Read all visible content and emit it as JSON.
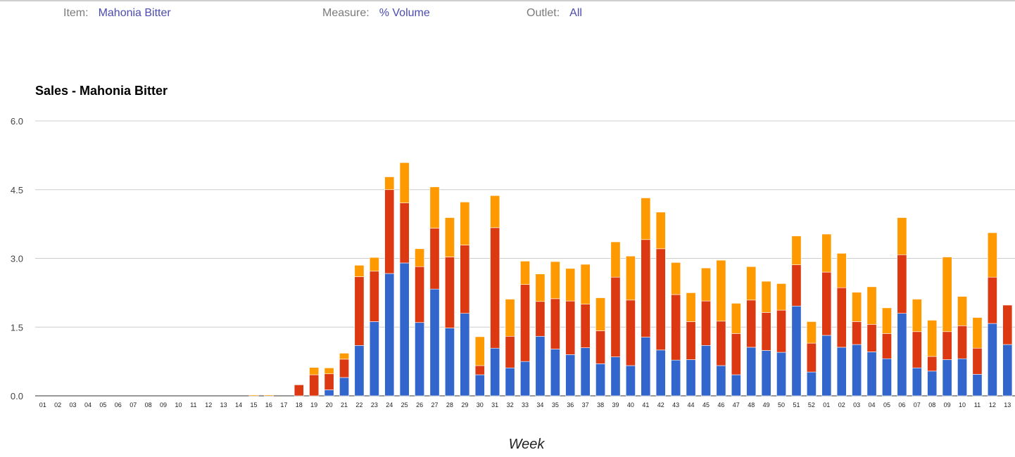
{
  "filters": {
    "item_label": "Item:",
    "item_value": "Mahonia Bitter",
    "measure_label": "Measure:",
    "measure_value": "% Volume",
    "outlet_label": "Outlet:",
    "outlet_value": "All"
  },
  "chart_data": {
    "type": "bar",
    "stacked": true,
    "title": "Sales - Mahonia Bitter",
    "xlabel": "Week",
    "ylabel": "",
    "ylim": [
      0,
      6
    ],
    "yticks": [
      "0.0",
      "1.5",
      "3.0",
      "4.5",
      "6.0"
    ],
    "grid": true,
    "legend": "none",
    "colors": [
      "#3366cc",
      "#dc3912",
      "#ff9900"
    ],
    "categories": [
      "01",
      "02",
      "03",
      "04",
      "05",
      "06",
      "07",
      "08",
      "09",
      "10",
      "11",
      "12",
      "13",
      "14",
      "15",
      "16",
      "17",
      "18",
      "19",
      "20",
      "21",
      "22",
      "23",
      "24",
      "25",
      "26",
      "27",
      "28",
      "29",
      "30",
      "31",
      "32",
      "33",
      "34",
      "35",
      "36",
      "37",
      "38",
      "39",
      "40",
      "41",
      "42",
      "43",
      "44",
      "45",
      "46",
      "47",
      "48",
      "49",
      "50",
      "51",
      "52",
      "01",
      "02",
      "03",
      "04",
      "05",
      "06",
      "07",
      "08",
      "09",
      "10",
      "11",
      "12",
      "13"
    ],
    "series": [
      {
        "values": [
          0,
          0,
          0,
          0,
          0,
          0,
          0,
          0,
          0,
          0,
          0,
          0,
          0,
          0,
          0,
          0,
          0,
          0,
          0,
          0.13,
          0.4,
          1.1,
          1.62,
          2.67,
          2.9,
          1.6,
          2.33,
          1.48,
          1.8,
          0.46,
          1.04,
          0.61,
          0.75,
          1.3,
          1.02,
          0.9,
          1.05,
          0.7,
          0.85,
          0.66,
          1.28,
          1.0,
          0.78,
          0.79,
          1.1,
          0.66,
          0.46,
          1.06,
          0.99,
          0.95,
          1.96,
          0.52,
          1.32,
          1.06,
          1.12,
          0.96,
          0.81,
          1.8,
          0.61,
          0.54,
          0.79,
          0.81,
          0.47,
          1.58,
          1.12
        ]
      },
      {
        "values": [
          0,
          0,
          0,
          0,
          0,
          0,
          0,
          0,
          0,
          0,
          0,
          0,
          0,
          0,
          0,
          0,
          0,
          0.24,
          0.46,
          0.35,
          0.4,
          1.5,
          1.1,
          1.83,
          1.31,
          1.22,
          1.33,
          1.55,
          1.49,
          0.2,
          2.63,
          0.69,
          1.68,
          0.76,
          1.1,
          1.17,
          0.95,
          0.72,
          1.74,
          1.43,
          2.13,
          2.21,
          1.43,
          0.83,
          0.97,
          0.97,
          0.9,
          1.03,
          0.83,
          0.92,
          0.9,
          0.63,
          1.38,
          1.3,
          0.5,
          0.6,
          0.55,
          1.28,
          0.79,
          0.32,
          0.61,
          0.72,
          0.57,
          1.01,
          0.86
        ]
      },
      {
        "values": [
          0,
          0,
          0,
          0,
          0,
          0,
          0,
          0,
          0,
          0,
          0,
          0,
          0,
          0,
          0.02,
          0.02,
          0,
          0,
          0.16,
          0.13,
          0.13,
          0.25,
          0.3,
          0.28,
          0.88,
          0.39,
          0.9,
          0.86,
          0.94,
          0.63,
          0.7,
          0.81,
          0.51,
          0.6,
          0.81,
          0.71,
          0.87,
          0.72,
          0.77,
          0.96,
          0.91,
          0.8,
          0.7,
          0.63,
          0.72,
          1.33,
          0.66,
          0.73,
          0.68,
          0.58,
          0.63,
          0.47,
          0.83,
          0.75,
          0.64,
          0.82,
          0.56,
          0.81,
          0.71,
          0.79,
          1.63,
          0.64,
          0.67,
          0.97,
          0
        ]
      }
    ]
  }
}
